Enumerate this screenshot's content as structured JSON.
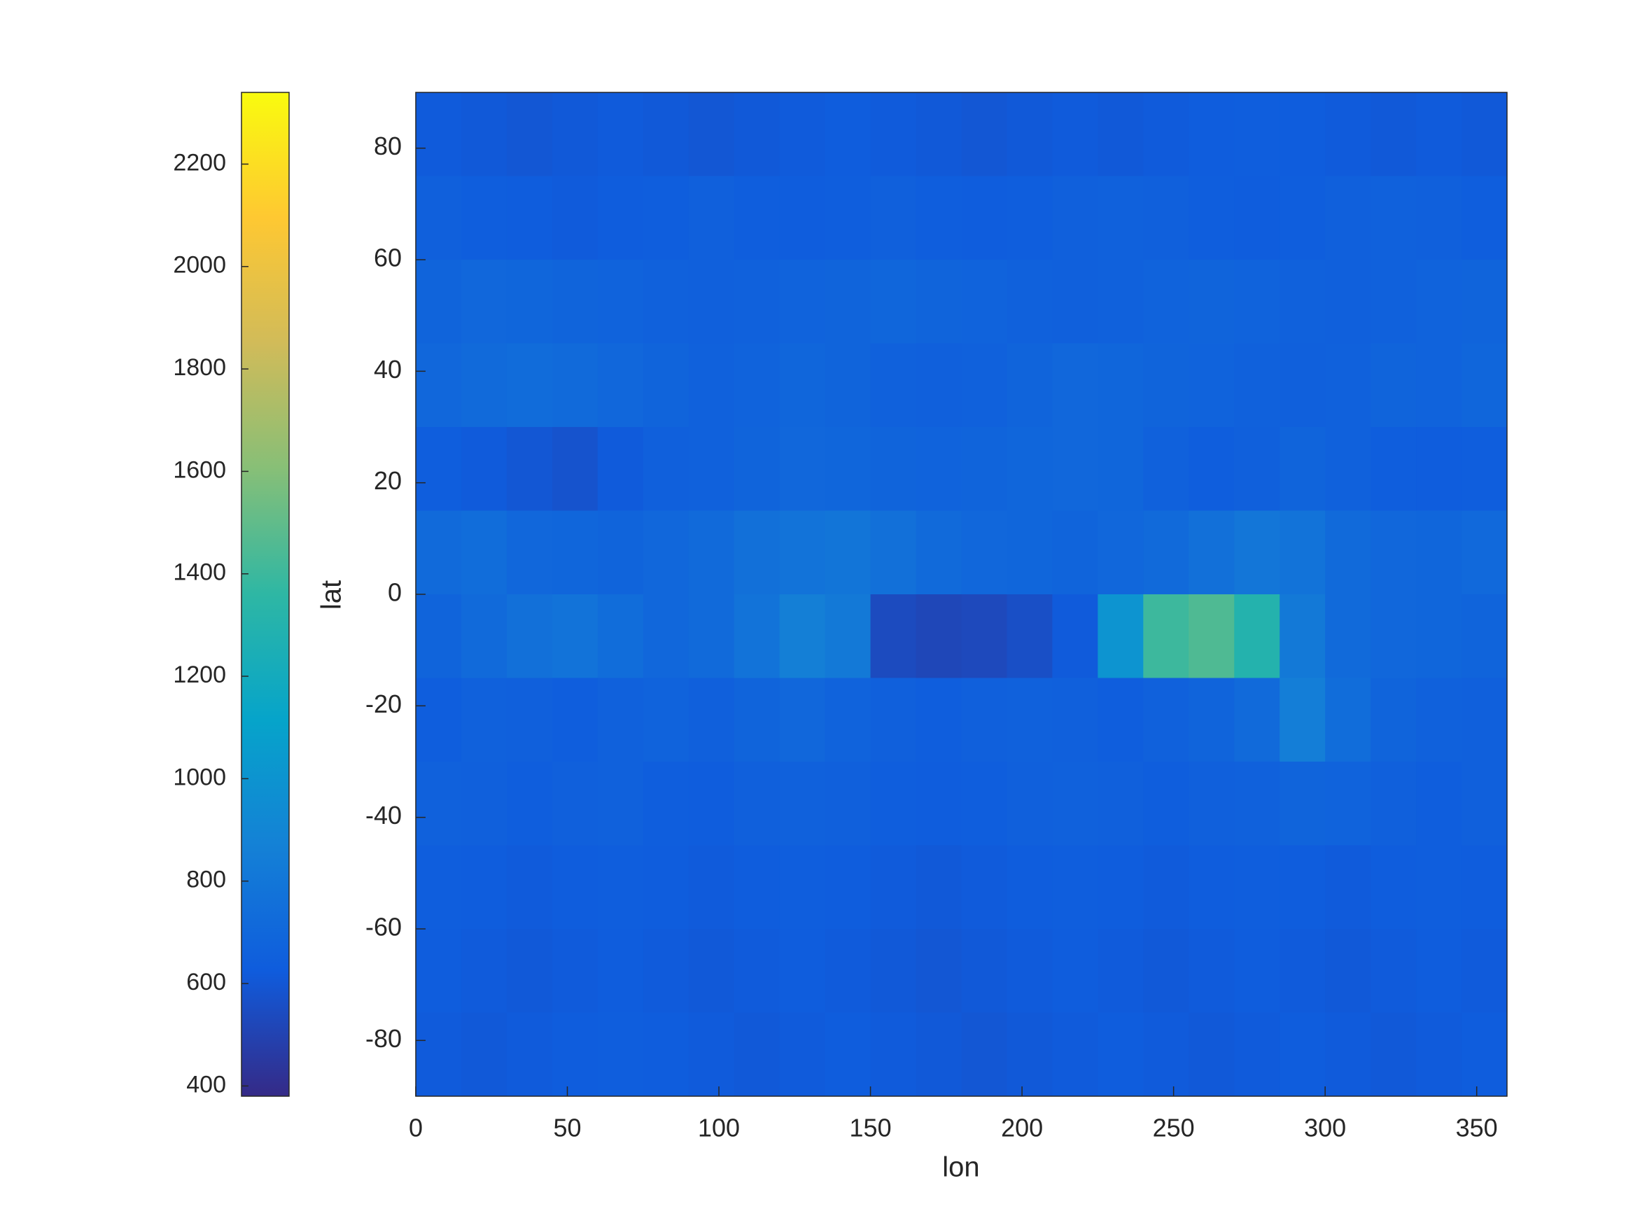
{
  "chart_data": {
    "type": "heatmap",
    "xlabel": "lon",
    "ylabel": "lat",
    "xlim": [
      0,
      360
    ],
    "ylim": [
      -90,
      90
    ],
    "xticks": [
      0,
      50,
      100,
      150,
      200,
      250,
      300,
      350
    ],
    "yticks": [
      -80,
      -60,
      -40,
      -20,
      0,
      20,
      40,
      60,
      80
    ],
    "xbins": [
      0,
      15,
      30,
      45,
      60,
      75,
      90,
      105,
      120,
      135,
      150,
      165,
      180,
      195,
      210,
      225,
      240,
      255,
      270,
      285,
      300,
      315,
      330,
      345,
      360
    ],
    "ybins": [
      90,
      75,
      60,
      45,
      30,
      15,
      0,
      -15,
      -30,
      -45,
      -60,
      -75,
      -90
    ],
    "clim": [
      380,
      2340
    ],
    "cticks": [
      400,
      600,
      800,
      1000,
      1200,
      1400,
      1600,
      1800,
      2000,
      2200
    ],
    "colormap": [
      "#352a87",
      "#0f5cdd",
      "#1481d6",
      "#06a4ca",
      "#2eb7a4",
      "#87bf77",
      "#d1bb59",
      "#fec832",
      "#f9fb0e"
    ],
    "z": [
      [
        620,
        610,
        600,
        610,
        620,
        610,
        600,
        610,
        620,
        630,
        620,
        610,
        600,
        610,
        620,
        610,
        620,
        630,
        640,
        630,
        620,
        610,
        620,
        610
      ],
      [
        650,
        640,
        630,
        620,
        630,
        640,
        650,
        640,
        630,
        640,
        650,
        640,
        630,
        640,
        650,
        660,
        650,
        640,
        630,
        640,
        650,
        660,
        650,
        640
      ],
      [
        680,
        700,
        690,
        680,
        670,
        660,
        650,
        660,
        670,
        680,
        690,
        680,
        670,
        660,
        650,
        660,
        670,
        680,
        670,
        660,
        650,
        660,
        670,
        680
      ],
      [
        700,
        720,
        730,
        720,
        700,
        680,
        660,
        670,
        690,
        680,
        660,
        650,
        660,
        680,
        700,
        690,
        680,
        670,
        660,
        650,
        660,
        680,
        670,
        690
      ],
      [
        640,
        620,
        600,
        580,
        620,
        650,
        660,
        680,
        700,
        690,
        680,
        670,
        680,
        690,
        700,
        690,
        660,
        640,
        650,
        680,
        660,
        640,
        630,
        640
      ],
      [
        720,
        740,
        700,
        690,
        680,
        700,
        720,
        760,
        780,
        790,
        760,
        720,
        700,
        690,
        680,
        700,
        720,
        760,
        800,
        780,
        720,
        700,
        690,
        710
      ],
      [
        680,
        720,
        760,
        780,
        740,
        700,
        720,
        780,
        860,
        820,
        540,
        520,
        530,
        560,
        620,
        1000,
        1400,
        1450,
        1300,
        820,
        720,
        700,
        690,
        680
      ],
      [
        640,
        660,
        650,
        640,
        660,
        670,
        650,
        680,
        700,
        670,
        650,
        640,
        650,
        660,
        650,
        640,
        660,
        680,
        720,
        850,
        740,
        680,
        660,
        650
      ],
      [
        660,
        650,
        640,
        650,
        660,
        640,
        630,
        650,
        660,
        650,
        640,
        630,
        640,
        650,
        660,
        650,
        640,
        650,
        660,
        680,
        670,
        650,
        640,
        650
      ],
      [
        640,
        630,
        620,
        630,
        640,
        630,
        620,
        630,
        640,
        630,
        620,
        610,
        620,
        630,
        640,
        630,
        620,
        630,
        640,
        630,
        620,
        630,
        640,
        630
      ],
      [
        630,
        620,
        610,
        620,
        630,
        620,
        610,
        620,
        630,
        620,
        610,
        600,
        610,
        620,
        630,
        620,
        610,
        620,
        630,
        620,
        610,
        620,
        630,
        620
      ],
      [
        620,
        610,
        620,
        630,
        640,
        630,
        620,
        610,
        620,
        630,
        620,
        610,
        600,
        610,
        620,
        630,
        620,
        610,
        620,
        630,
        620,
        610,
        620,
        630
      ]
    ]
  }
}
